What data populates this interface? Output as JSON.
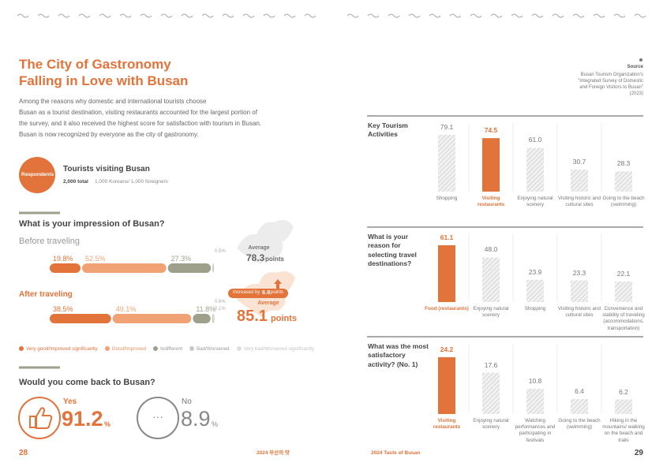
{
  "left_page": {
    "title": [
      "The City of Gastronomy",
      "Falling in Love with Busan"
    ],
    "intro": [
      "Among the reasons why domestic and international tourists choose",
      "Busan as a tourist destination, visiting restaurants accounted for the largest portion of",
      "the survey, and it also received the highest score for satisfaction with tourism in Busan.",
      "Busan is now recognized by everyone as the city of gastronomy."
    ],
    "respondents": {
      "badge": "Respondents",
      "title": "Tourists visiting Busan",
      "total": "2,000 total",
      "detail": "1,000 Koreans/ 1,000 foreigners"
    },
    "come_back": {
      "question": "Would you come back to Busan?",
      "yes": {
        "label": "Yes",
        "value": "91.2",
        "unit": "%"
      },
      "no": {
        "label": "No",
        "value": "8.9",
        "unit": "%"
      }
    },
    "page_number": "28",
    "footer": "2024 부산의 맛"
  },
  "right_page": {
    "source": {
      "heading": "Source",
      "lines": [
        "Busan Tourism Organization's",
        "\"Integrated Survey of Domestic",
        "and Foreign Visitors to Busan\"",
        "(2023)"
      ]
    },
    "footer": "2024 Taste of Busan",
    "page_number": "29"
  },
  "chart_data": [
    {
      "type": "stacked-bar",
      "title": "What is your impression of Busan?",
      "categories": [
        "Before traveling",
        "After traveling"
      ],
      "xlim": [
        0,
        100
      ],
      "series": [
        {
          "name": "Very good/Improved significantly",
          "color": "#e2733a",
          "values": [
            19.8,
            38.5
          ],
          "value_labels": [
            "19.8%",
            "38.5%"
          ]
        },
        {
          "name": "Good/Improved",
          "color": "#f0a274",
          "values": [
            52.5,
            49.1
          ],
          "value_labels": [
            "52.5%",
            "49.1%"
          ]
        },
        {
          "name": "Indifferent",
          "color": "#9ea08c",
          "values": [
            27.3,
            11.8
          ],
          "value_labels": [
            "27.3%",
            "11.8%"
          ]
        },
        {
          "name": "Bad/Worsened",
          "color": "#c9c9bd",
          "values": [
            0.5,
            0.6
          ],
          "value_labels": [
            "0.5%",
            "0.6%"
          ]
        },
        {
          "name": "Very bad/Worsened significantly",
          "color": "#dedede",
          "values": [
            null,
            0.1
          ],
          "value_labels": [
            null,
            "0.1%"
          ]
        }
      ],
      "average_before": {
        "label": "Average",
        "value": "78.3",
        "unit": "points"
      },
      "increase": {
        "text": "Increased by",
        "value": "6.8",
        "unit": "points"
      },
      "average_after": {
        "label": "Average",
        "value": "85.1",
        "unit": "points"
      }
    },
    {
      "type": "bar",
      "title": "Key Tourism Activities",
      "categories": [
        "Shopping",
        "Visiting restaurants",
        "Enjoying natural scenery",
        "Visiting historic and cultural sites",
        "Going to the beach (swimming)"
      ],
      "values": [
        79.1,
        74.5,
        61.0,
        30.7,
        28.3
      ],
      "value_labels": [
        "79.1",
        "74.5",
        "61.0",
        "30.7",
        "28.3"
      ],
      "highlight": 1,
      "color": "#e2733a"
    },
    {
      "type": "bar",
      "title": "What is your reason for selecting travel destinations?",
      "categories": [
        "Food (restaurants)",
        "Enjoying natural scenery",
        "Shopping",
        "Visiting historic and cultural sites",
        "Convenience and stability of traveling (accommodations, transportation)"
      ],
      "values": [
        61.1,
        48.0,
        23.9,
        23.3,
        22.1
      ],
      "value_labels": [
        "61.1",
        "48.0",
        "23.9",
        "23.3",
        "22.1"
      ],
      "highlight": 0,
      "color": "#e2733a"
    },
    {
      "type": "bar",
      "title": "What was the most satisfactory activity? (No. 1)",
      "categories": [
        "Visiting restaurants",
        "Enjoying natural scenery",
        "Watching performances and participating in festivals",
        "Going to the beach (swimming)",
        "Hiking in the mountains/ walking on the beach and trails"
      ],
      "values": [
        24.2,
        17.6,
        10.8,
        6.4,
        6.2
      ],
      "value_labels": [
        "24.2",
        "17.6",
        "10.8",
        "6.4",
        "6.2"
      ],
      "highlight": 0,
      "color": "#e2733a"
    }
  ]
}
